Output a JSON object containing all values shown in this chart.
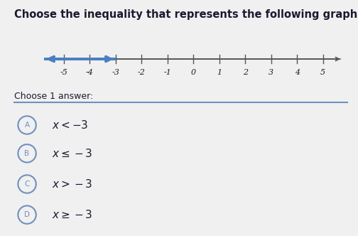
{
  "title": "Choose the inequality that represents the following graph.",
  "title_fontsize": 10.5,
  "tick_positions": [
    -5,
    -4,
    -3,
    -2,
    -1,
    0,
    1,
    2,
    3,
    4,
    5
  ],
  "arrow_color": "#4a7fc1",
  "axis_color": "#555555",
  "background_color": "#f0f0f0",
  "separator_color": "#7090c0",
  "circle_color": "#7090c0",
  "text_color": "#1a1a2e",
  "choice_labels": [
    "A",
    "B",
    "C",
    "D"
  ],
  "choice_texts": [
    "x < −3",
    "x ≤ −3",
    "x > −3",
    "x ≥ −3"
  ],
  "choice_texts_raw": [
    "x < -3",
    "x <= -3",
    "x > -3",
    "x >= -3"
  ],
  "fig_width": 5.04,
  "fig_height": 3.32,
  "dpi": 100
}
